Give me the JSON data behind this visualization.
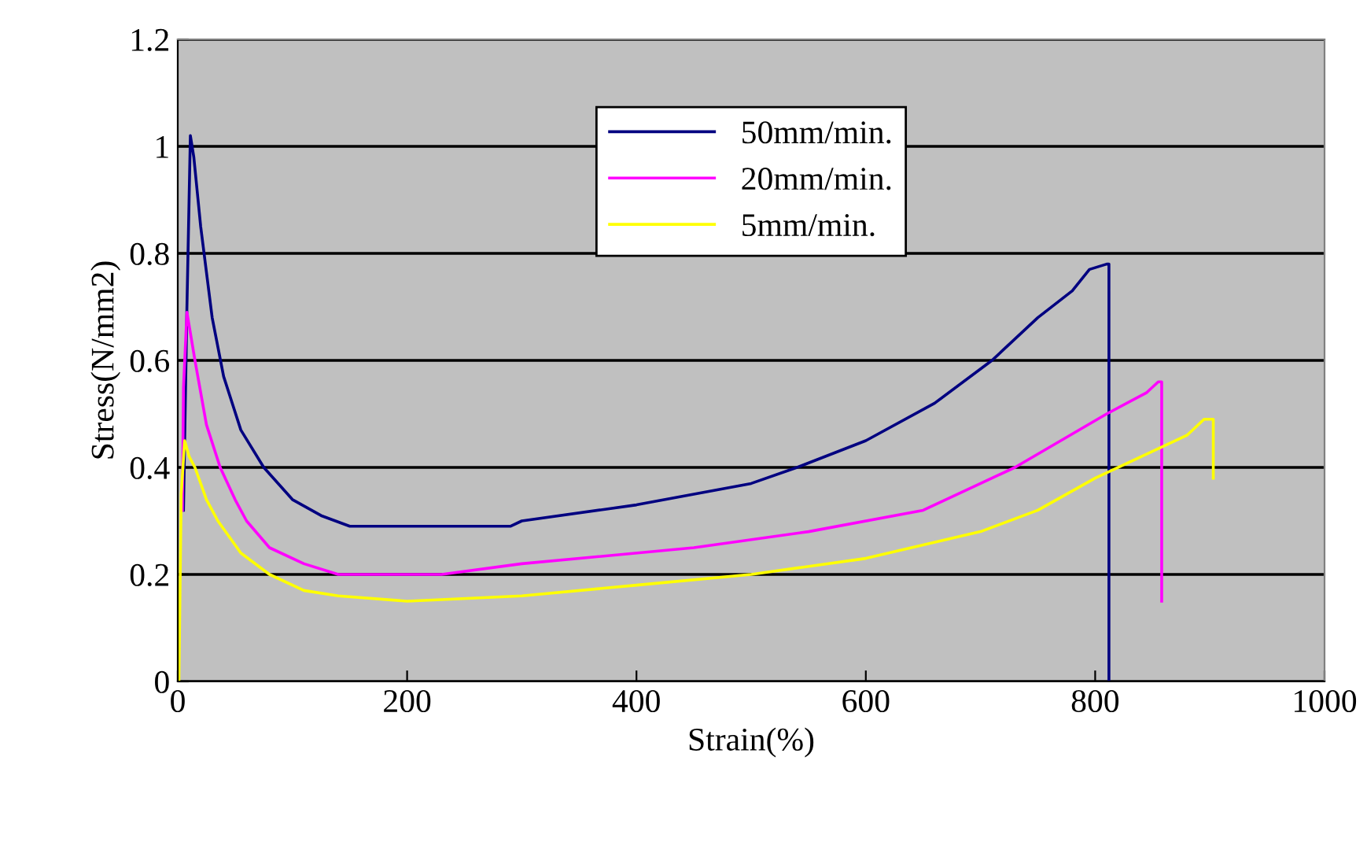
{
  "chart_data": {
    "type": "line",
    "xlabel": "Strain(%)",
    "ylabel": "Stress(N/mm2)",
    "xlim": [
      0,
      1000
    ],
    "ylim": [
      0,
      1.2
    ],
    "xticks": [
      0,
      200,
      400,
      600,
      800,
      1000
    ],
    "yticks": [
      0,
      0.2,
      0.4,
      0.6,
      0.8,
      1,
      1.2
    ],
    "grid": "y",
    "legend": "top",
    "marker": "none",
    "line_style": "solid",
    "series": [
      {
        "name": "50mm/min.",
        "color": "#000080",
        "x": [
          5,
          8,
          11,
          14,
          20,
          30,
          40,
          55,
          75,
          100,
          125,
          150,
          200,
          250,
          290,
          300,
          400,
          500,
          540,
          600,
          660,
          710,
          750,
          780,
          795,
          810,
          812,
          812
        ],
        "values": [
          0.32,
          0.7,
          1.02,
          0.98,
          0.85,
          0.68,
          0.57,
          0.47,
          0.4,
          0.34,
          0.31,
          0.29,
          0.29,
          0.29,
          0.29,
          0.3,
          0.33,
          0.37,
          0.4,
          0.45,
          0.52,
          0.6,
          0.68,
          0.73,
          0.77,
          0.78,
          0.78,
          0
        ]
      },
      {
        "name": "20mm/min.",
        "color": "#ff00ff",
        "x": [
          4,
          5,
          8,
          15,
          25,
          37,
          50,
          60,
          80,
          110,
          140,
          230,
          300,
          450,
          550,
          650,
          700,
          730,
          770,
          810,
          845,
          855,
          858,
          858
        ],
        "values": [
          0.32,
          0.55,
          0.69,
          0.6,
          0.48,
          0.4,
          0.34,
          0.3,
          0.25,
          0.22,
          0.2,
          0.2,
          0.22,
          0.25,
          0.28,
          0.32,
          0.37,
          0.4,
          0.45,
          0.5,
          0.54,
          0.56,
          0.56,
          0.15
        ]
      },
      {
        "name": "5mm/min.",
        "color": "#ffff00",
        "x": [
          1,
          3,
          6,
          10,
          15,
          25,
          35,
          55,
          80,
          110,
          140,
          200,
          300,
          400,
          500,
          600,
          700,
          750,
          800,
          840,
          880,
          895,
          903,
          903
        ],
        "values": [
          0,
          0.35,
          0.45,
          0.42,
          0.4,
          0.34,
          0.3,
          0.24,
          0.2,
          0.17,
          0.16,
          0.15,
          0.16,
          0.18,
          0.2,
          0.23,
          0.28,
          0.32,
          0.38,
          0.42,
          0.46,
          0.49,
          0.49,
          0.38
        ]
      }
    ]
  }
}
